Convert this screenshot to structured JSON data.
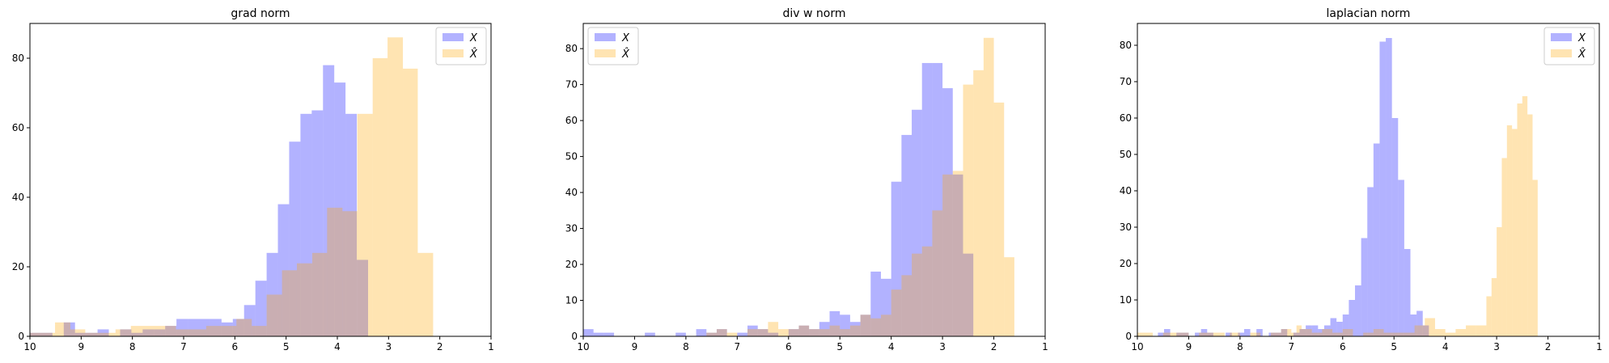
{
  "figure": {
    "legend_labels": [
      "X",
      "X̂"
    ]
  },
  "colors": {
    "X": "#0000ff",
    "Xhat": "#ffa500",
    "alpha": 0.3
  },
  "chart_data": [
    {
      "type": "bar",
      "title": "grad norm",
      "xlabel": "",
      "ylabel": "",
      "xlim": [
        10,
        1
      ],
      "ylim": [
        0,
        90
      ],
      "xticks": [
        10,
        9,
        8,
        7,
        6,
        5,
        4,
        3,
        2,
        1
      ],
      "yticks": [
        0,
        20,
        40,
        60,
        80
      ],
      "legend_position": "top-right",
      "series": [
        {
          "name": "X",
          "edges": [
            10,
            9.78,
            9.56,
            9.34,
            9.12,
            8.9,
            8.68,
            8.46,
            8.24,
            8.02,
            7.8,
            7.58,
            7.36,
            7.14,
            6.92,
            6.7,
            6.48,
            6.26,
            6.04,
            5.82,
            5.6,
            5.38,
            5.16,
            4.94,
            4.72,
            4.5,
            4.28,
            4.06,
            3.84,
            3.62,
            3.4
          ],
          "counts": [
            1,
            1,
            0,
            4,
            1,
            1,
            2,
            0,
            2,
            1,
            2,
            2,
            3,
            5,
            5,
            5,
            5,
            4,
            5,
            9,
            16,
            24,
            38,
            56,
            64,
            65,
            78,
            73,
            64,
            22
          ]
        },
        {
          "name": "X̂",
          "edges": [
            10,
            9.51,
            9.21,
            8.92,
            8.62,
            8.33,
            8.03,
            7.74,
            7.44,
            7.15,
            6.85,
            6.56,
            6.26,
            5.97,
            5.67,
            5.38,
            5.08,
            4.79,
            4.49,
            4.2,
            3.9,
            3.61,
            3.31,
            3.02,
            2.72,
            2.43,
            2.13,
            1.84
          ],
          "counts": [
            1,
            4,
            2,
            1,
            1,
            2,
            3,
            3,
            3,
            2,
            2,
            3,
            3,
            5,
            3,
            12,
            19,
            21,
            24,
            37,
            36,
            64,
            80,
            86,
            77,
            24,
            0
          ]
        }
      ]
    },
    {
      "type": "bar",
      "title": "div w norm",
      "xlabel": "",
      "ylabel": "",
      "xlim": [
        10,
        1
      ],
      "ylim": [
        0,
        87
      ],
      "xticks": [
        10,
        9,
        8,
        7,
        6,
        5,
        4,
        3,
        2,
        1
      ],
      "yticks": [
        0,
        10,
        20,
        30,
        40,
        50,
        60,
        70,
        80
      ],
      "legend_position": "top-left",
      "series": [
        {
          "name": "X",
          "edges": [
            10,
            9.8,
            9.6,
            9.4,
            9.2,
            9.0,
            8.8,
            8.6,
            8.4,
            8.2,
            8.0,
            7.8,
            7.6,
            7.4,
            7.2,
            7.0,
            6.8,
            6.6,
            6.4,
            6.2,
            6.0,
            5.8,
            5.6,
            5.4,
            5.2,
            5.0,
            4.8,
            4.6,
            4.4,
            4.2,
            4.0,
            3.8,
            3.6,
            3.4,
            3.2,
            3.0,
            2.8,
            2.6,
            2.4
          ],
          "counts": [
            2,
            1,
            1,
            0,
            0,
            0,
            1,
            0,
            0,
            1,
            0,
            2,
            1,
            2,
            0,
            1,
            3,
            2,
            1,
            0,
            2,
            3,
            2,
            4,
            7,
            6,
            4,
            6,
            18,
            16,
            43,
            56,
            63,
            76,
            76,
            69,
            45,
            23
          ]
        },
        {
          "name": "X̂",
          "edges": [
            10,
            7.6,
            7.4,
            7.2,
            7.0,
            6.8,
            6.6,
            6.4,
            6.2,
            6.0,
            5.8,
            5.6,
            5.4,
            5.2,
            5.0,
            4.8,
            4.6,
            4.4,
            4.2,
            4.0,
            3.8,
            3.6,
            3.4,
            3.2,
            3.0,
            2.8,
            2.6,
            2.4,
            2.2,
            2.0,
            1.8,
            1.6,
            1.4
          ],
          "counts": [
            0,
            1,
            2,
            1,
            0,
            2,
            2,
            4,
            2,
            2,
            3,
            2,
            2,
            3,
            2,
            3,
            6,
            5,
            6,
            13,
            17,
            23,
            25,
            35,
            45,
            46,
            70,
            74,
            83,
            65,
            22,
            0
          ]
        }
      ]
    },
    {
      "type": "bar",
      "title": "laplacian norm",
      "xlabel": "",
      "ylabel": "",
      "xlim": [
        10,
        1
      ],
      "ylim": [
        0,
        86
      ],
      "xticks": [
        10,
        9,
        8,
        7,
        6,
        5,
        4,
        3,
        2,
        1
      ],
      "yticks": [
        0,
        10,
        20,
        30,
        40,
        50,
        60,
        70,
        80
      ],
      "legend_position": "top-right",
      "series": [
        {
          "name": "X",
          "edges": [
            10,
            9.6,
            9.48,
            9.36,
            9.24,
            9.12,
            9.0,
            8.88,
            8.76,
            8.64,
            8.52,
            8.4,
            8.28,
            8.16,
            8.04,
            7.92,
            7.8,
            7.68,
            7.56,
            7.44,
            7.32,
            7.2,
            7.08,
            6.96,
            6.84,
            6.72,
            6.6,
            6.48,
            6.36,
            6.24,
            6.12,
            6.0,
            5.88,
            5.76,
            5.64,
            5.52,
            5.4,
            5.28,
            5.16,
            5.04,
            4.92,
            4.8,
            4.68,
            4.56,
            4.44,
            4.32,
            4.2
          ],
          "counts": [
            0,
            1,
            2,
            0,
            1,
            1,
            0,
            1,
            2,
            1,
            0,
            0,
            1,
            0,
            1,
            2,
            0,
            2,
            0,
            1,
            1,
            2,
            0,
            1,
            2,
            3,
            3,
            2,
            3,
            5,
            4,
            6,
            10,
            14,
            27,
            41,
            53,
            81,
            82,
            60,
            43,
            24,
            6,
            7,
            3,
            0
          ]
        },
        {
          "name": "X̂",
          "edges": [
            10,
            9.7,
            9.5,
            9.0,
            8.9,
            8.8,
            8.3,
            8.2,
            8.0,
            7.8,
            7.6,
            7.4,
            7.2,
            7.0,
            6.9,
            6.8,
            6.6,
            6.5,
            6.4,
            6.2,
            6.0,
            5.8,
            5.6,
            5.4,
            5.2,
            5.0,
            4.8,
            4.6,
            4.4,
            4.2,
            4.0,
            3.8,
            3.6,
            3.4,
            3.2,
            3.1,
            3.0,
            2.9,
            2.8,
            2.7,
            2.6,
            2.5,
            2.4,
            2.3,
            2.2,
            2.1
          ],
          "counts": [
            1,
            0,
            1,
            0,
            0,
            1,
            0,
            1,
            0,
            1,
            0,
            1,
            2,
            1,
            3,
            2,
            1,
            1,
            2,
            1,
            2,
            0,
            1,
            2,
            1,
            1,
            1,
            3,
            5,
            2,
            1,
            2,
            3,
            3,
            11,
            16,
            30,
            49,
            58,
            57,
            64,
            66,
            61,
            43,
            0
          ]
        }
      ]
    }
  ]
}
